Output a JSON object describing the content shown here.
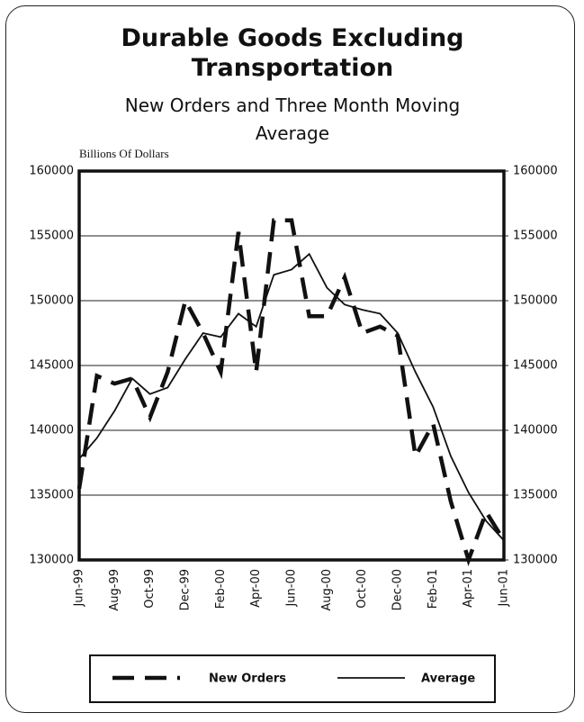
{
  "chart_data": {
    "type": "line",
    "title": "Durable Goods Excluding Transportation",
    "subtitle": "New Orders and Three Month Moving Average",
    "y_label": "Billions Of Dollars",
    "categories": [
      "Jun-99",
      null,
      "Aug-99",
      null,
      "Oct-99",
      null,
      "Dec-99",
      null,
      "Feb-00",
      null,
      "Apr-00",
      null,
      "Jun-00",
      null,
      "Aug-00",
      null,
      "Oct-00",
      null,
      "Dec-00",
      null,
      "Feb-01",
      null,
      "Apr-01",
      null,
      "Jun-01"
    ],
    "series": [
      {
        "name": "New Orders",
        "color": "#111111",
        "dashed": true,
        "values": [
          135500,
          144200,
          143600,
          144000,
          141000,
          144500,
          150000,
          147500,
          144500,
          155300,
          144500,
          156200,
          156200,
          148800,
          148800,
          151800,
          147500,
          148000,
          147300,
          138000,
          140500,
          134500,
          130000,
          133700,
          131500
        ]
      },
      {
        "name": "Average",
        "color": "#111111",
        "dashed": false,
        "values": [
          137800,
          139400,
          141500,
          144000,
          142800,
          143300,
          145500,
          147500,
          147200,
          149000,
          148000,
          152000,
          152400,
          153600,
          151000,
          149700,
          149300,
          149000,
          147500,
          144500,
          141800,
          138000,
          135200,
          133000,
          131500
        ]
      }
    ],
    "ylim": [
      130000,
      160000
    ],
    "yticks": [
      130000,
      135000,
      140000,
      145000,
      150000,
      155000,
      160000
    ],
    "y2lim": [
      130000,
      160000
    ],
    "y2ticks": [
      130000,
      135000,
      140000,
      145000,
      150000,
      155000,
      160000
    ],
    "grid": true
  }
}
